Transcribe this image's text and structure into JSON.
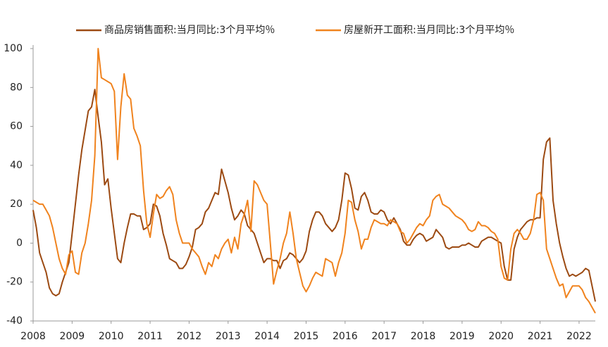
{
  "chart_data": {
    "type": "line",
    "categories": [
      "2008",
      null,
      null,
      null,
      null,
      null,
      null,
      null,
      null,
      null,
      null,
      null,
      "2009",
      null,
      null,
      null,
      null,
      null,
      null,
      null,
      null,
      null,
      null,
      null,
      "2010",
      null,
      null,
      null,
      null,
      null,
      null,
      null,
      null,
      null,
      null,
      null,
      "2011",
      null,
      null,
      null,
      null,
      null,
      null,
      null,
      null,
      null,
      null,
      null,
      "2012",
      null,
      null,
      null,
      null,
      null,
      null,
      null,
      null,
      null,
      null,
      null,
      "2013",
      null,
      null,
      null,
      null,
      null,
      null,
      null,
      null,
      null,
      null,
      null,
      "2014",
      null,
      null,
      null,
      null,
      null,
      null,
      null,
      null,
      null,
      null,
      null,
      "2015",
      null,
      null,
      null,
      null,
      null,
      null,
      null,
      null,
      null,
      null,
      null,
      "2016",
      null,
      null,
      null,
      null,
      null,
      null,
      null,
      null,
      null,
      null,
      null,
      "2017",
      null,
      null,
      null,
      null,
      null,
      null,
      null,
      null,
      null,
      null,
      null,
      "2018",
      null,
      null,
      null,
      null,
      null,
      null,
      null,
      null,
      null,
      null,
      null,
      "2019",
      null,
      null,
      null,
      null,
      null,
      null,
      null,
      null,
      null,
      null,
      null,
      "2020",
      null,
      null,
      null,
      null,
      null,
      null,
      null,
      null,
      null,
      null,
      null,
      "2021",
      null,
      null,
      null,
      null,
      null,
      null,
      null,
      null,
      null,
      null,
      null,
      "2022",
      null,
      null,
      null,
      null,
      null
    ],
    "series": [
      {
        "name": "商品房销售面积:当月同比:3个月平均％",
        "color": "#9c4a12",
        "values": [
          17,
          8,
          -5,
          -10,
          -15,
          -23,
          -26,
          -27,
          -26,
          -20,
          -15,
          -10,
          5,
          20,
          35,
          48,
          58,
          68,
          70,
          79,
          65,
          52,
          30,
          33,
          18,
          5,
          -8,
          -10,
          0,
          8,
          15,
          15,
          14,
          14,
          7,
          8,
          10,
          20,
          19,
          14,
          5,
          -1,
          -8,
          -9,
          -10,
          -13,
          -13,
          -11,
          -7,
          -2,
          7,
          8,
          10,
          16,
          18,
          22,
          26,
          25,
          38,
          32,
          26,
          18,
          12,
          14,
          17,
          15,
          9,
          7,
          5,
          0,
          -5,
          -10,
          -8,
          -8,
          -9,
          -9,
          -13,
          -9,
          -8,
          -5,
          -6,
          -8,
          -10,
          -8,
          -4,
          6,
          12,
          16,
          16,
          14,
          10,
          8,
          6,
          8,
          12,
          22,
          36,
          35,
          28,
          18,
          17,
          24,
          26,
          22,
          16,
          15,
          15,
          17,
          16,
          12,
          10,
          13,
          10,
          7,
          1,
          -1,
          -1,
          2,
          4,
          5,
          4,
          1,
          2,
          3,
          7,
          5,
          3,
          -2,
          -3,
          -2,
          -2,
          -2,
          -1,
          -1,
          0,
          -1,
          -2,
          -2,
          1,
          2,
          3,
          3,
          2,
          1,
          0,
          -12,
          -19,
          -19,
          -3,
          3,
          7,
          9,
          11,
          12,
          12,
          13,
          13,
          43,
          52,
          54,
          22,
          10,
          0,
          -7,
          -13,
          -17,
          -16,
          -17,
          -16,
          -15,
          -13,
          -14,
          -22,
          -30
        ]
      },
      {
        "name": "房屋新开工面积:当月同比:3个月平均％",
        "color": "#f0831e",
        "values": [
          22,
          21,
          20,
          20,
          17,
          14,
          8,
          0,
          -8,
          -13,
          -16,
          -6,
          -4,
          -15,
          -16,
          -5,
          0,
          10,
          22,
          45,
          100,
          85,
          84,
          83,
          82,
          78,
          43,
          70,
          87,
          76,
          74,
          59,
          55,
          50,
          27,
          10,
          3,
          15,
          25,
          23,
          24,
          27,
          29,
          25,
          12,
          5,
          0,
          0,
          0,
          -3,
          -5,
          -7,
          -12,
          -16,
          -10,
          -12,
          -6,
          -8,
          -3,
          0,
          2,
          -5,
          3,
          -3,
          10,
          15,
          22,
          6,
          32,
          30,
          26,
          22,
          20,
          0,
          -21,
          -14,
          -8,
          0,
          5,
          16,
          5,
          -8,
          -15,
          -22,
          -25,
          -22,
          -18,
          -15,
          -16,
          -17,
          -8,
          -9,
          -10,
          -17,
          -10,
          -5,
          5,
          22,
          21,
          12,
          6,
          -3,
          2,
          2,
          8,
          12,
          11,
          10,
          10,
          9,
          12,
          11,
          10,
          6,
          5,
          0,
          2,
          5,
          8,
          10,
          9,
          12,
          14,
          22,
          24,
          25,
          20,
          19,
          18,
          16,
          14,
          13,
          12,
          10,
          7,
          6,
          7,
          11,
          9,
          9,
          8,
          6,
          5,
          2,
          -12,
          -18,
          -19,
          -3,
          5,
          7,
          5,
          2,
          2,
          5,
          12,
          25,
          26,
          22,
          -3,
          -8,
          -13,
          -18,
          -22,
          -21,
          -28,
          -25,
          -22,
          -22,
          -22,
          -24,
          -28,
          -30,
          -33,
          -36
        ]
      }
    ],
    "ylim": [
      -40,
      100
    ],
    "yticks": [
      -40,
      -20,
      0,
      20,
      40,
      60,
      80,
      100
    ],
    "grid": false,
    "legend": "top"
  }
}
